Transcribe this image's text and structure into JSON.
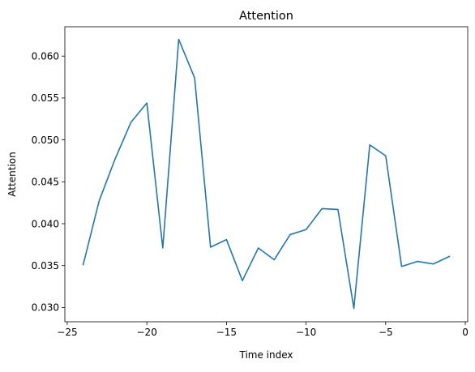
{
  "chart_data": {
    "type": "line",
    "title": "Attention",
    "xlabel": "Time index",
    "ylabel": "Attention",
    "xlim": [
      -25.15,
      0.15
    ],
    "ylim": [
      0.0283,
      0.0635
    ],
    "xticks": [
      -25,
      -20,
      -15,
      -10,
      -5,
      0
    ],
    "xtick_labels": [
      "−25",
      "−20",
      "−15",
      "−10",
      "−5",
      "0"
    ],
    "yticks": [
      0.03,
      0.035,
      0.04,
      0.045,
      0.05,
      0.055,
      0.06
    ],
    "ytick_labels": [
      "0.030",
      "0.035",
      "0.040",
      "0.045",
      "0.050",
      "0.055",
      "0.060"
    ],
    "grid": false,
    "series": [
      {
        "color": "#1f77b4",
        "x": [
          -24,
          -23,
          -22,
          -21,
          -20,
          -19,
          -18,
          -17,
          -16,
          -15,
          -14,
          -13,
          -12,
          -11,
          -10,
          -9,
          -8,
          -7,
          -6,
          -5,
          -4,
          -3,
          -2,
          -1
        ],
        "y": [
          0.0351,
          0.0427,
          0.0477,
          0.0521,
          0.0544,
          0.0371,
          0.062,
          0.0574,
          0.0372,
          0.0381,
          0.0332,
          0.0371,
          0.0357,
          0.0387,
          0.0393,
          0.0418,
          0.0417,
          0.0299,
          0.0494,
          0.0481,
          0.0349,
          0.0355,
          0.0352,
          0.0361
        ]
      }
    ]
  }
}
